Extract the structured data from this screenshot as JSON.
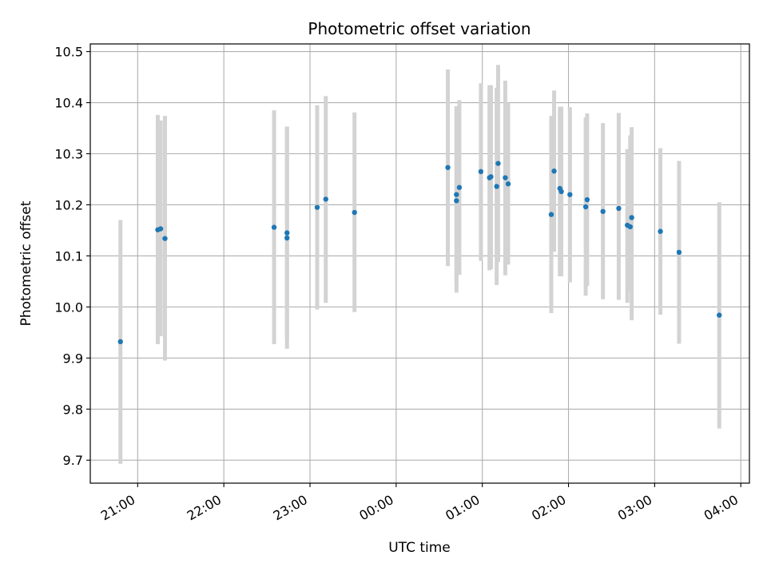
{
  "chart_data": {
    "type": "scatter",
    "title": "Photometric offset variation",
    "xlabel": "UTC time",
    "ylabel": "Photometric offset",
    "xlim": [
      "20:27",
      "04:06"
    ],
    "ylim": [
      9.655,
      10.515
    ],
    "x_ticks": [
      {
        "t": "21:00",
        "label": "21:00"
      },
      {
        "t": "22:00",
        "label": "22:00"
      },
      {
        "t": "23:00",
        "label": "23:00"
      },
      {
        "t": "00:00",
        "label": "00:00"
      },
      {
        "t": "01:00",
        "label": "01:00"
      },
      {
        "t": "02:00",
        "label": "02:00"
      },
      {
        "t": "03:00",
        "label": "03:00"
      },
      {
        "t": "04:00",
        "label": "04:00"
      }
    ],
    "y_ticks": [
      9.7,
      9.8,
      9.9,
      10.0,
      10.1,
      10.2,
      10.3,
      10.4,
      10.5
    ],
    "grid": true,
    "colors": {
      "points": "#1f77b4",
      "errorbars": "#d3d3d3",
      "grid": "#b0b0b0"
    },
    "points": [
      {
        "t": "20:48",
        "y": 9.932,
        "ylo": 9.693,
        "yhi": 10.17
      },
      {
        "t": "21:14",
        "y": 10.151,
        "ylo": 9.927,
        "yhi": 10.376
      },
      {
        "t": "21:16",
        "y": 10.153,
        "ylo": 9.943,
        "yhi": 10.365
      },
      {
        "t": "21:19",
        "y": 10.134,
        "ylo": 9.895,
        "yhi": 10.374
      },
      {
        "t": "22:35",
        "y": 10.156,
        "ylo": 9.927,
        "yhi": 10.385
      },
      {
        "t": "22:44",
        "y": 10.145,
        "ylo": 9.937,
        "yhi": 10.353
      },
      {
        "t": "22:44",
        "y": 10.135,
        "ylo": 9.918,
        "yhi": 10.353
      },
      {
        "t": "23:05",
        "y": 10.195,
        "ylo": 9.995,
        "yhi": 10.395
      },
      {
        "t": "23:11",
        "y": 10.211,
        "ylo": 10.008,
        "yhi": 10.413
      },
      {
        "t": "23:31",
        "y": 10.185,
        "ylo": 9.99,
        "yhi": 10.381
      },
      {
        "t": "00:36",
        "y": 10.273,
        "ylo": 10.08,
        "yhi": 10.465
      },
      {
        "t": "00:42",
        "y": 10.208,
        "ylo": 10.028,
        "yhi": 10.388
      },
      {
        "t": "00:42",
        "y": 10.22,
        "ylo": 10.048,
        "yhi": 10.393
      },
      {
        "t": "00:44",
        "y": 10.234,
        "ylo": 10.063,
        "yhi": 10.405
      },
      {
        "t": "00:59",
        "y": 10.265,
        "ylo": 10.09,
        "yhi": 10.438
      },
      {
        "t": "01:05",
        "y": 10.253,
        "ylo": 10.072,
        "yhi": 10.434
      },
      {
        "t": "01:06",
        "y": 10.255,
        "ylo": 10.074,
        "yhi": 10.434
      },
      {
        "t": "01:10",
        "y": 10.236,
        "ylo": 10.043,
        "yhi": 10.429
      },
      {
        "t": "01:11",
        "y": 10.281,
        "ylo": 10.088,
        "yhi": 10.474
      },
      {
        "t": "01:16",
        "y": 10.253,
        "ylo": 10.062,
        "yhi": 10.443
      },
      {
        "t": "01:18",
        "y": 10.241,
        "ylo": 10.083,
        "yhi": 10.4
      },
      {
        "t": "01:48",
        "y": 10.181,
        "ylo": 9.988,
        "yhi": 10.374
      },
      {
        "t": "01:50",
        "y": 10.266,
        "ylo": 10.108,
        "yhi": 10.424
      },
      {
        "t": "01:54",
        "y": 10.232,
        "ylo": 10.06,
        "yhi": 10.392
      },
      {
        "t": "01:55",
        "y": 10.226,
        "ylo": 10.06,
        "yhi": 10.392
      },
      {
        "t": "02:01",
        "y": 10.22,
        "ylo": 10.048,
        "yhi": 10.391
      },
      {
        "t": "02:12",
        "y": 10.196,
        "ylo": 10.022,
        "yhi": 10.371
      },
      {
        "t": "02:13",
        "y": 10.21,
        "ylo": 10.041,
        "yhi": 10.379
      },
      {
        "t": "02:24",
        "y": 10.187,
        "ylo": 10.015,
        "yhi": 10.36
      },
      {
        "t": "02:35",
        "y": 10.193,
        "ylo": 10.014,
        "yhi": 10.38
      },
      {
        "t": "02:41",
        "y": 10.16,
        "ylo": 10.008,
        "yhi": 10.309
      },
      {
        "t": "02:43",
        "y": 10.157,
        "ylo": 10.03,
        "yhi": 10.336
      },
      {
        "t": "02:44",
        "y": 10.175,
        "ylo": 9.974,
        "yhi": 10.352
      },
      {
        "t": "03:04",
        "y": 10.148,
        "ylo": 9.985,
        "yhi": 10.311
      },
      {
        "t": "03:17",
        "y": 10.107,
        "ylo": 9.928,
        "yhi": 10.286
      },
      {
        "t": "03:45",
        "y": 9.984,
        "ylo": 9.762,
        "yhi": 10.205
      }
    ]
  }
}
